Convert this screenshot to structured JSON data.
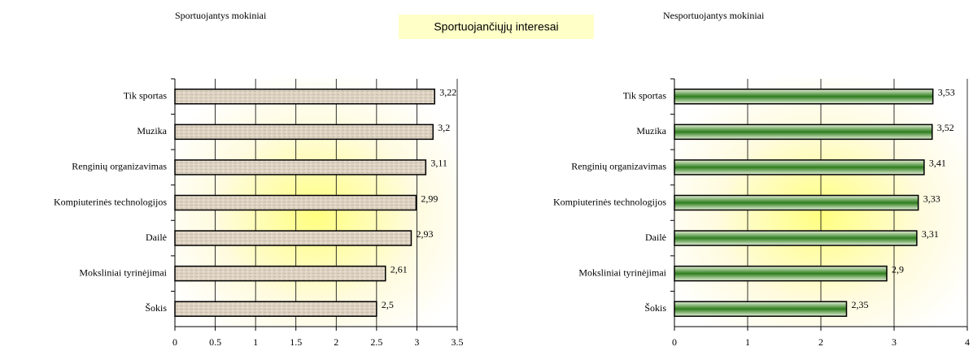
{
  "title": "Sportuojančiųjų interesai",
  "chart_data": [
    {
      "type": "bar",
      "orientation": "horizontal",
      "title": "Sportuojantys mokiniai",
      "categories": [
        "Tik sportas",
        "Muzika",
        "Renginių organizavimas",
        "Kompiuterinės technologijos",
        "Dailė",
        "Moksliniai tyrinėjimai",
        "Šokis"
      ],
      "values": [
        3.22,
        3.2,
        3.11,
        2.99,
        2.93,
        2.61,
        2.5
      ],
      "value_labels": [
        "3,22",
        "3,2",
        "3,11",
        "2,99",
        "2,93",
        "2,61",
        "2,5"
      ],
      "color": "#ddd2c2",
      "xlim": [
        0,
        3.5
      ],
      "xticks": [
        0,
        0.5,
        1,
        1.5,
        2,
        2.5,
        3,
        3.5
      ],
      "grid": true
    },
    {
      "type": "bar",
      "orientation": "horizontal",
      "title": "Nesportuojantys mokiniai",
      "categories": [
        "Tik sportas",
        "Muzika",
        "Renginių organizavimas",
        "Kompiuterinės technologijos",
        "Dailė",
        "Moksliniai tyrinėjimai",
        "Šokis"
      ],
      "values": [
        3.53,
        3.52,
        3.41,
        3.33,
        3.31,
        2.9,
        2.35
      ],
      "value_labels": [
        "3,53",
        "3,52",
        "3,41",
        "3,33",
        "3,31",
        "2,9",
        "2,35"
      ],
      "color": "#2e7d1e",
      "xlim": [
        0,
        4
      ],
      "xticks": [
        0,
        1,
        2,
        3,
        4
      ],
      "grid": true
    }
  ]
}
